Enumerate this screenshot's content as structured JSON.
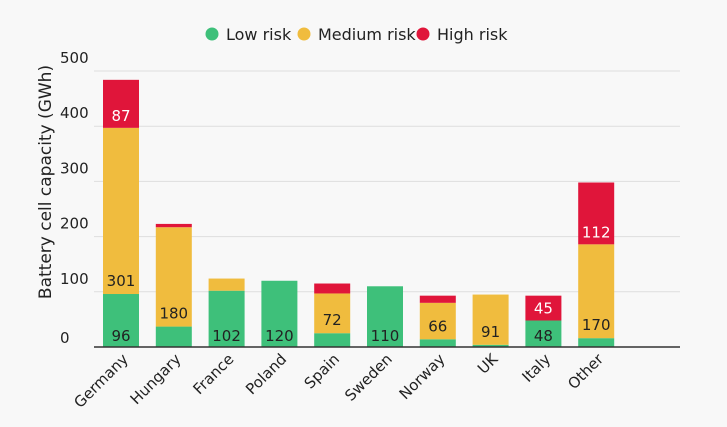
{
  "chart_data": {
    "type": "bar",
    "stacked": true,
    "categories": [
      "Germany",
      "Hungary",
      "France",
      "Poland",
      "Spain",
      "Sweden",
      "Norway",
      "UK",
      "Italy",
      "Other"
    ],
    "series": [
      {
        "name": "Low risk",
        "color": "#3ec07a",
        "values": [
          96,
          37,
          102,
          120,
          25,
          110,
          14,
          4,
          48,
          16
        ],
        "labels": [
          "96",
          "",
          "102",
          "120",
          "",
          "110",
          "",
          "",
          "48",
          ""
        ]
      },
      {
        "name": "Medium risk",
        "color": "#f0bc3e",
        "values": [
          301,
          180,
          22,
          0,
          72,
          0,
          66,
          91,
          0,
          170
        ],
        "labels": [
          "301",
          "180",
          "",
          "",
          "72",
          "",
          "66",
          "91",
          "",
          "170"
        ]
      },
      {
        "name": "High risk",
        "color": "#e0153a",
        "values": [
          87,
          6,
          0,
          0,
          18,
          0,
          13,
          0,
          45,
          112
        ],
        "labels": [
          "87",
          "",
          "",
          "",
          "",
          "",
          "",
          "",
          "45",
          "112"
        ]
      }
    ],
    "ylabel": "Battery cell capacity (GWh)",
    "xlabel": "",
    "ylim": [
      0,
      500
    ],
    "yticks": [
      "0",
      "100",
      "200",
      "300",
      "400",
      "500"
    ],
    "grid": true,
    "legend_position": "top-center"
  }
}
